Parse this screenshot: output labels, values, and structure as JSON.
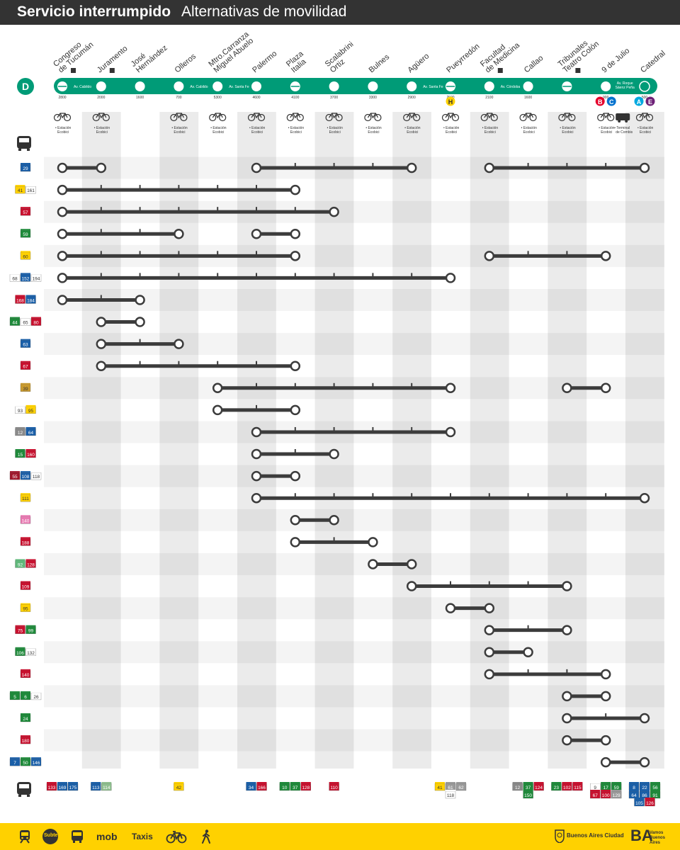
{
  "header": {
    "title": "Servicio interrumpido",
    "subtitle": "Alternativas de movilidad"
  },
  "line": {
    "letter": "D",
    "color": "#009b77"
  },
  "stations": [
    {
      "name": "Congreso de Tucumán",
      "access": true,
      "num": "2800",
      "ecobici": "Estación Ecobici"
    },
    {
      "name": "Juramento",
      "access": true,
      "num": "2000",
      "ecobici": "Estación Ecobici"
    },
    {
      "name": "José Hernández",
      "access": false,
      "num": "1600",
      "ecobici": ""
    },
    {
      "name": "Olleros",
      "access": false,
      "num": "700",
      "ecobici": "Estación Ecobici"
    },
    {
      "name": "Mtro.Carranza Miguel Abuelo",
      "access": false,
      "num": "5300",
      "ecobici": "Estación Ecobici"
    },
    {
      "name": "Palermo",
      "access": false,
      "num": "4600",
      "ecobici": "Estación Ecobici"
    },
    {
      "name": "Plaza Italia",
      "access": false,
      "num": "4100",
      "ecobici": "Estación Ecobici"
    },
    {
      "name": "Scalabrini Ortiz",
      "access": false,
      "num": "3700",
      "ecobici": "Estación Ecobici"
    },
    {
      "name": "Bulnes",
      "access": false,
      "num": "3300",
      "ecobici": "Estación Ecobici"
    },
    {
      "name": "Agüero",
      "access": false,
      "num": "2900",
      "ecobici": "Estación Ecobici"
    },
    {
      "name": "Pueyrredón",
      "access": false,
      "num": "2500",
      "ecobici": "Estación Ecobici"
    },
    {
      "name": "Facultad de Medicina",
      "access": true,
      "num": "2100",
      "ecobici": "Estación Ecobici"
    },
    {
      "name": "Callao",
      "access": false,
      "num": "1600",
      "ecobici": "Estación Ecobici"
    },
    {
      "name": "Tribunales Teatro Colón",
      "access": true,
      "num": "",
      "ecobici": "Estación Ecobici"
    },
    {
      "name": "9 de Julio",
      "access": false,
      "num": "900",
      "ecobici": "Estación Ecobici"
    },
    {
      "name": "Catedral",
      "access": false,
      "num": "500",
      "ecobici": "Estación Ecobici"
    }
  ],
  "street_labels": [
    {
      "text": "Av. Cabildo",
      "after": 0
    },
    {
      "text": "Av. Cabildo",
      "after": 3
    },
    {
      "text": "Av. Santa Fe",
      "after": 4
    },
    {
      "text": "Av. Santa Fe",
      "after": 9
    },
    {
      "text": "Av. Córdoba",
      "after": 11
    },
    {
      "text": "Av. Roque",
      "after": 14
    },
    {
      "text": "Sáenz Peña",
      "after": 14
    }
  ],
  "terminal_label": "Terminal de Combis",
  "connections": [
    {
      "letter": "H",
      "color": "#ffd100",
      "text": "#333333",
      "station": 10
    },
    {
      "letter": "B",
      "color": "#e4002b",
      "text": "#ffffff",
      "station": 14
    },
    {
      "letter": "C",
      "color": "#0071ce",
      "text": "#ffffff",
      "station": 14
    },
    {
      "letter": "A",
      "color": "#00a9e0",
      "text": "#ffffff",
      "station": 15
    },
    {
      "letter": "E",
      "color": "#6d2077",
      "text": "#ffffff",
      "station": 15
    }
  ],
  "routes": [
    {
      "buses": [
        {
          "n": "29",
          "c": "#1a5fa8"
        }
      ],
      "segs": [
        [
          0,
          1
        ],
        [
          5,
          9
        ],
        [
          11,
          15
        ]
      ]
    },
    {
      "buses": [
        {
          "n": "41",
          "c": "#ffd100",
          "t": "#333333"
        },
        {
          "n": "161",
          "c": "#ffffff",
          "t": "#333333"
        }
      ],
      "segs": [
        [
          0,
          6
        ]
      ]
    },
    {
      "buses": [
        {
          "n": "57",
          "c": "#c8102e"
        }
      ],
      "segs": [
        [
          0,
          7
        ]
      ]
    },
    {
      "buses": [
        {
          "n": "59",
          "c": "#1e8a3a"
        }
      ],
      "segs": [
        [
          0,
          3
        ],
        [
          5,
          6
        ]
      ]
    },
    {
      "buses": [
        {
          "n": "60",
          "c": "#ffd100",
          "t": "#333333"
        }
      ],
      "segs": [
        [
          0,
          6
        ],
        [
          11,
          14
        ]
      ]
    },
    {
      "buses": [
        {
          "n": "68",
          "c": "#ffffff",
          "t": "#333333"
        },
        {
          "n": "152",
          "c": "#1a5fa8"
        },
        {
          "n": "194",
          "c": "#ffffff",
          "t": "#333333"
        }
      ],
      "segs": [
        [
          0,
          10
        ]
      ]
    },
    {
      "buses": [
        {
          "n": "168",
          "c": "#c8102e"
        },
        {
          "n": "184",
          "c": "#1a5fa8"
        }
      ],
      "segs": [
        [
          0,
          2
        ]
      ]
    },
    {
      "buses": [
        {
          "n": "44",
          "c": "#1e8a3a"
        },
        {
          "n": "65",
          "c": "#ffffff",
          "t": "#333333"
        },
        {
          "n": "80",
          "c": "#c8102e"
        }
      ],
      "segs": [
        [
          1,
          2
        ]
      ]
    },
    {
      "buses": [
        {
          "n": "63",
          "c": "#1a5fa8"
        }
      ],
      "segs": [
        [
          1,
          3
        ]
      ]
    },
    {
      "buses": [
        {
          "n": "67",
          "c": "#c8102e"
        }
      ],
      "segs": [
        [
          1,
          6
        ]
      ]
    },
    {
      "buses": [
        {
          "n": "39",
          "c": "#c99a2e",
          "t": "#333333"
        }
      ],
      "segs": [
        [
          4,
          10
        ],
        [
          13,
          14
        ]
      ]
    },
    {
      "buses": [
        {
          "n": "93",
          "c": "#ffffff",
          "t": "#333333"
        },
        {
          "n": "95",
          "c": "#ffd100",
          "t": "#333333"
        }
      ],
      "segs": [
        [
          4,
          6
        ]
      ]
    },
    {
      "buses": [
        {
          "n": "12",
          "c": "#8a8a8a"
        },
        {
          "n": "64",
          "c": "#1a5fa8"
        }
      ],
      "segs": [
        [
          5,
          10
        ]
      ]
    },
    {
      "buses": [
        {
          "n": "15",
          "c": "#1e8a3a"
        },
        {
          "n": "160",
          "c": "#c8102e"
        }
      ],
      "segs": [
        [
          5,
          7
        ]
      ]
    },
    {
      "buses": [
        {
          "n": "55",
          "c": "#a0162a"
        },
        {
          "n": "108",
          "c": "#1a5fa8"
        },
        {
          "n": "118",
          "c": "#ffffff",
          "t": "#333333"
        }
      ],
      "segs": [
        [
          5,
          6
        ]
      ]
    },
    {
      "buses": [
        {
          "n": "111",
          "c": "#ffd100",
          "t": "#333333"
        }
      ],
      "segs": [
        [
          5,
          15
        ]
      ]
    },
    {
      "buses": [
        {
          "n": "140",
          "c": "#e97ab2"
        }
      ],
      "segs": [
        [
          6,
          7
        ]
      ]
    },
    {
      "buses": [
        {
          "n": "188",
          "c": "#c8102e"
        }
      ],
      "segs": [
        [
          6,
          8
        ]
      ]
    },
    {
      "buses": [
        {
          "n": "92",
          "c": "#5fb87a"
        },
        {
          "n": "128",
          "c": "#c8102e"
        }
      ],
      "segs": [
        [
          8,
          9
        ]
      ]
    },
    {
      "buses": [
        {
          "n": "109",
          "c": "#c8102e"
        }
      ],
      "segs": [
        [
          9,
          13
        ]
      ]
    },
    {
      "buses": [
        {
          "n": "95",
          "c": "#ffd100",
          "t": "#333333"
        }
      ],
      "segs": [
        [
          10,
          11
        ]
      ]
    },
    {
      "buses": [
        {
          "n": "75",
          "c": "#c8102e"
        },
        {
          "n": "99",
          "c": "#1e8a3a"
        }
      ],
      "segs": [
        [
          11,
          13
        ]
      ]
    },
    {
      "buses": [
        {
          "n": "106",
          "c": "#1e8a3a"
        },
        {
          "n": "132",
          "c": "#ffffff",
          "t": "#333333"
        }
      ],
      "segs": [
        [
          11,
          12
        ]
      ]
    },
    {
      "buses": [
        {
          "n": "140",
          "c": "#c8102e"
        }
      ],
      "segs": [
        [
          11,
          14
        ]
      ]
    },
    {
      "buses": [
        {
          "n": "5",
          "c": "#1e8a3a"
        },
        {
          "n": "6",
          "c": "#1e8a3a"
        },
        {
          "n": "26",
          "c": "#ffffff",
          "t": "#333333"
        }
      ],
      "segs": [
        [
          13,
          14
        ]
      ]
    },
    {
      "buses": [
        {
          "n": "24",
          "c": "#1e8a3a"
        }
      ],
      "segs": [
        [
          13,
          15
        ]
      ]
    },
    {
      "buses": [
        {
          "n": "180",
          "c": "#c8102e"
        }
      ],
      "segs": [
        [
          13,
          14
        ]
      ]
    },
    {
      "buses": [
        {
          "n": "7",
          "c": "#1a5fa8"
        },
        {
          "n": "50",
          "c": "#1e8a3a"
        },
        {
          "n": "146",
          "c": "#1a5fa8"
        }
      ],
      "segs": [
        [
          14,
          15
        ]
      ]
    }
  ],
  "bottom_buses": [
    {
      "station": 0,
      "rows": [
        [
          {
            "n": "133",
            "c": "#c8102e"
          },
          {
            "n": "169",
            "c": "#1a5fa8"
          },
          {
            "n": "175",
            "c": "#1a5fa8"
          }
        ]
      ]
    },
    {
      "station": 1,
      "rows": [
        [
          {
            "n": "113",
            "c": "#1a5fa8"
          },
          {
            "n": "114",
            "c": "#8fbf8f"
          }
        ]
      ]
    },
    {
      "station": 3,
      "rows": [
        [
          {
            "n": "42",
            "c": "#ffd100",
            "t": "#333333"
          }
        ]
      ]
    },
    {
      "station": 5,
      "rows": [
        [
          {
            "n": "34",
            "c": "#1a5fa8"
          },
          {
            "n": "166",
            "c": "#c8102e"
          }
        ]
      ]
    },
    {
      "station": 6,
      "rows": [
        [
          {
            "n": "10",
            "c": "#1e8a3a"
          },
          {
            "n": "37",
            "c": "#1e8a3a"
          },
          {
            "n": "128",
            "c": "#c8102e"
          }
        ]
      ]
    },
    {
      "station": 7,
      "rows": [
        [
          {
            "n": "110",
            "c": "#c8102e"
          }
        ]
      ]
    },
    {
      "station": 10,
      "rows": [
        [
          {
            "n": "41",
            "c": "#ffd100",
            "t": "#333333"
          },
          {
            "n": "61",
            "c": "#9a9a9a"
          },
          {
            "n": "62",
            "c": "#9a9a9a"
          }
        ],
        [
          {
            "n": "118",
            "c": "#ffffff",
            "t": "#333333"
          }
        ]
      ]
    },
    {
      "station": 12,
      "rows": [
        [
          {
            "n": "12",
            "c": "#8a8a8a"
          },
          {
            "n": "37",
            "c": "#1e8a3a"
          },
          {
            "n": "124",
            "c": "#c8102e"
          }
        ],
        [
          {
            "n": "150",
            "c": "#1e8a3a"
          }
        ]
      ]
    },
    {
      "station": 13,
      "rows": [
        [
          {
            "n": "23",
            "c": "#1e8a3a"
          },
          {
            "n": "102",
            "c": "#c8102e"
          },
          {
            "n": "115",
            "c": "#c8102e"
          }
        ]
      ]
    },
    {
      "station": 14,
      "rows": [
        [
          {
            "n": "9",
            "c": "#ffffff",
            "t": "#333333"
          },
          {
            "n": "17",
            "c": "#1e8a3a"
          },
          {
            "n": "59",
            "c": "#1e8a3a"
          }
        ],
        [
          {
            "n": "67",
            "c": "#c8102e"
          },
          {
            "n": "100",
            "c": "#c8102e"
          },
          {
            "n": "129",
            "c": "#9a9a9a"
          }
        ]
      ]
    },
    {
      "station": 15,
      "rows": [
        [
          {
            "n": "8",
            "c": "#1a5fa8"
          },
          {
            "n": "22",
            "c": "#1a5fa8"
          },
          {
            "n": "56",
            "c": "#1e8a3a"
          }
        ],
        [
          {
            "n": "64",
            "c": "#1a5fa8"
          },
          {
            "n": "86",
            "c": "#1a5fa8"
          },
          {
            "n": "91",
            "c": "#1e8a3a"
          }
        ],
        [
          {
            "n": "105",
            "c": "#1a5fa8"
          },
          {
            "n": "126",
            "c": "#c8102e"
          }
        ]
      ]
    }
  ],
  "footer": {
    "subte_label": "Subte",
    "mob_label": "mob",
    "taxis_label": "Taxis",
    "ciudad_label": "Buenos Aires Ciudad",
    "ba_label": "BA",
    "ba_sub": "Vamos Buenos Aires"
  }
}
